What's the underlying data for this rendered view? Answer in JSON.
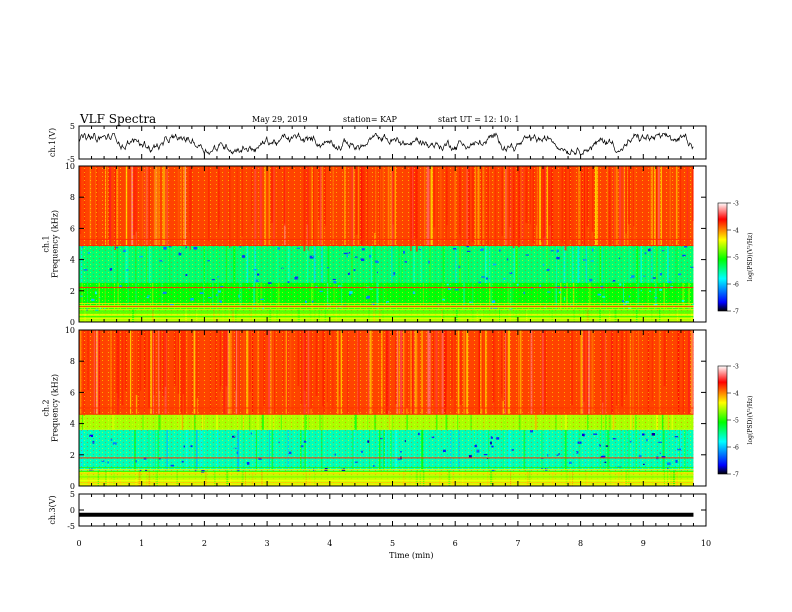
{
  "header": {
    "title": "VLF Spectra",
    "date": "May 29, 2019",
    "station": "station= KAP",
    "start": "start  UT  =   12: 10: 1"
  },
  "chart_data": [
    {
      "type": "line",
      "panel": "ch1-waveform",
      "ylabel": "ch.1(V)",
      "ylim": [
        -5,
        5
      ],
      "yticks": [
        "5",
        "-5"
      ],
      "x_unit": "min",
      "data_extent_min": [
        0,
        9.8
      ],
      "series": [
        {
          "values_description_level": [
            0.0,
            -1.0,
            -1.5,
            -2.0
          ]
        }
      ]
    },
    {
      "type": "heatmap",
      "panel": "ch1-spectrogram",
      "ylabel": "ch.1\nFrequency (kHz)",
      "ylabel_lines": [
        "ch.1",
        "Frequency  (kHz)"
      ],
      "ylim": [
        0,
        10
      ],
      "yticks": [
        "0",
        "2",
        "4",
        "6",
        "8",
        "10"
      ],
      "bands": [
        {
          "from_khz": 0,
          "to_khz": 0.8,
          "level": -4.6
        },
        {
          "from_khz": 0.8,
          "to_khz": 2.5,
          "level": -5.1
        },
        {
          "from_khz": 2.5,
          "to_khz": 4.9,
          "level": -5.4
        },
        {
          "from_khz": 4.9,
          "to_khz": 10,
          "level": -3.8
        }
      ],
      "lines_khz": [
        1.0,
        2.2,
        4.9,
        5.3
      ]
    },
    {
      "type": "heatmap",
      "panel": "ch2-spectrogram",
      "ylabel_lines": [
        "ch.2",
        "Frequency  (kHz)"
      ],
      "ylim": [
        0,
        10
      ],
      "yticks": [
        "0",
        "2",
        "4",
        "6",
        "8",
        "10"
      ],
      "bands": [
        {
          "from_khz": 0,
          "to_khz": 1.0,
          "level": -4.5
        },
        {
          "from_khz": 1.0,
          "to_khz": 3.6,
          "level": -5.6
        },
        {
          "from_khz": 3.6,
          "to_khz": 4.6,
          "level": -4.6
        },
        {
          "from_khz": 4.6,
          "to_khz": 10,
          "level": -3.8
        }
      ],
      "lines_khz": [
        1.8,
        4.6,
        5.0
      ]
    },
    {
      "type": "line",
      "panel": "ch3-waveform",
      "ylabel": "ch.3(V)",
      "ylim": [
        -5,
        5
      ],
      "yticks": [
        "5",
        "0",
        "-5"
      ],
      "series": [
        {
          "constant": -1.5
        }
      ]
    }
  ],
  "xaxis": {
    "label": "Time  (min)",
    "ticks": [
      "0",
      "1",
      "2",
      "3",
      "4",
      "5",
      "6",
      "7",
      "8",
      "9",
      "10"
    ],
    "range": [
      0,
      10
    ]
  },
  "colorbar": {
    "label": "log(PSD)(V²/Hz)",
    "ticks": [
      "-3",
      "-4",
      "-5",
      "-6",
      "-7"
    ],
    "range": [
      -7,
      -3
    ],
    "colors": [
      "#000000",
      "#0000ff",
      "#00ffff",
      "#00ff00",
      "#ffff00",
      "#ff0000",
      "#ffffff"
    ]
  }
}
